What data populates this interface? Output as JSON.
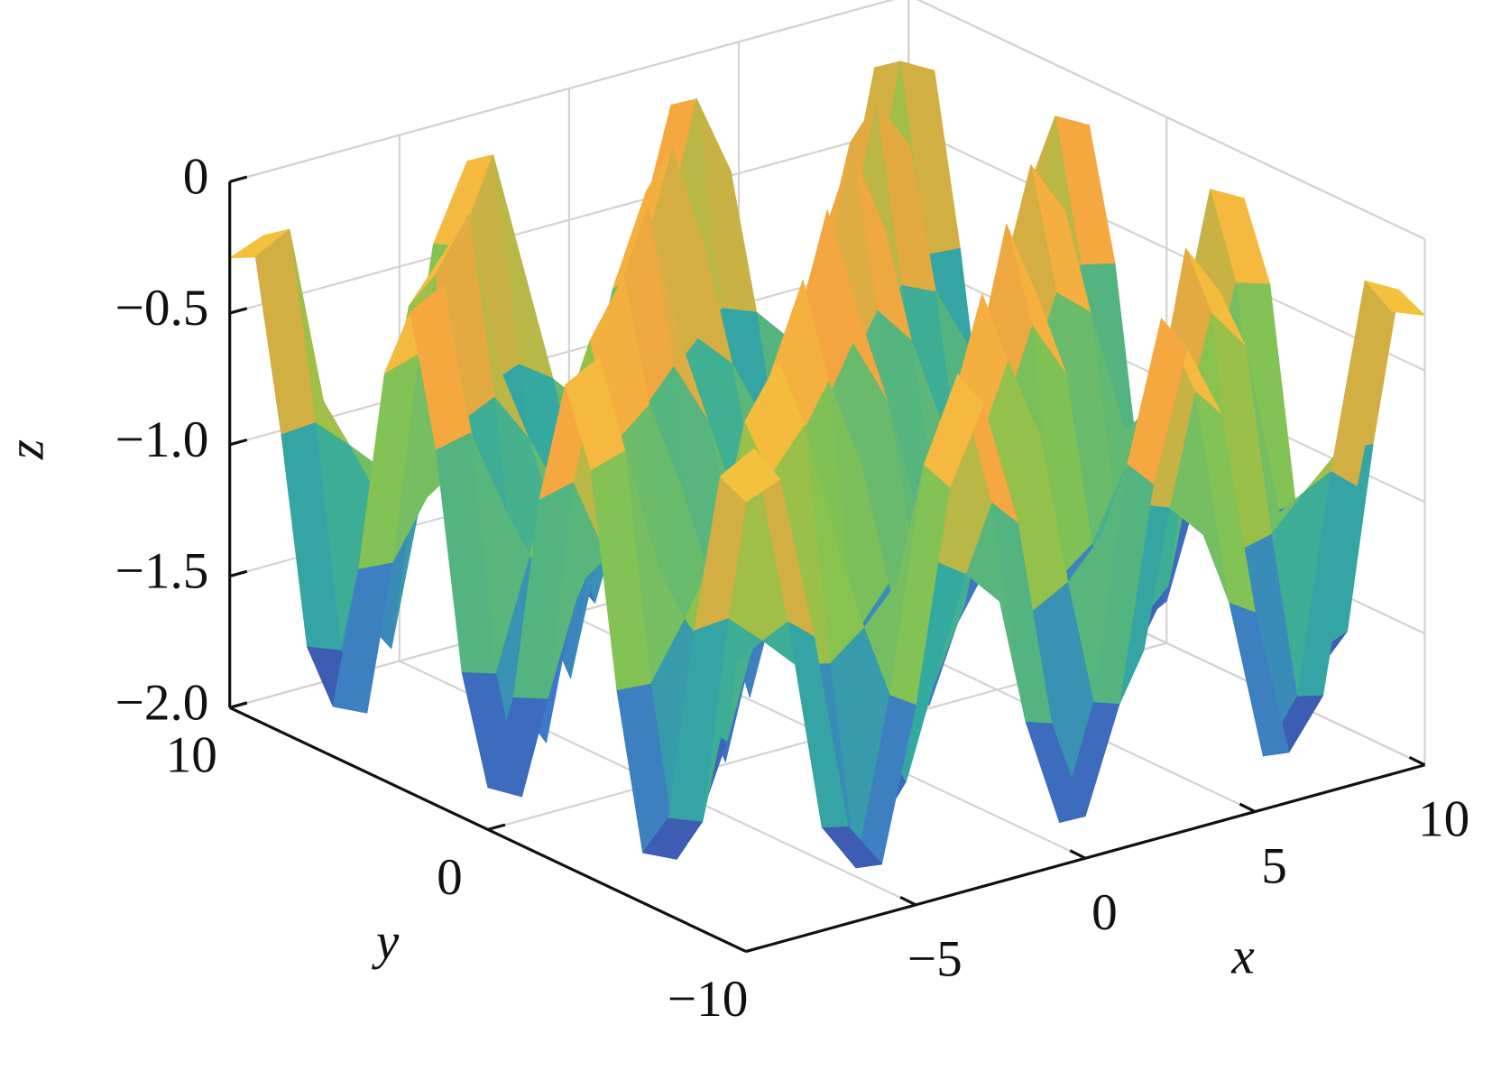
{
  "chart_data": {
    "type": "surface",
    "x_label": "x",
    "y_label": "y",
    "z_label": "z",
    "xlim": [
      -10,
      10
    ],
    "ylim": [
      -10,
      10
    ],
    "zlim": [
      -2,
      0
    ],
    "xticks": [
      {
        "value": -5,
        "label": "−5"
      },
      0,
      5,
      10
    ],
    "yticks": [
      {
        "value": -10,
        "label": "−10"
      },
      0,
      10
    ],
    "zticks": [
      {
        "value": -2,
        "label": "−2.0"
      },
      {
        "value": -1.5,
        "label": "−1.5"
      },
      {
        "value": -1,
        "label": "−1.0"
      },
      {
        "value": -0.5,
        "label": "−0.5"
      },
      0
    ],
    "grid": true,
    "colormap": [
      "#3e2d8f",
      "#3d79c8",
      "#34ab9e",
      "#8bc44c",
      "#f5a53f",
      "#f2e83a"
    ],
    "x": [
      -10,
      -9,
      -8,
      -7,
      -6,
      -5,
      -4,
      -3,
      -2,
      -1,
      0,
      1,
      2,
      3,
      4,
      5,
      6,
      7,
      8,
      9,
      10
    ],
    "y": [
      -10,
      -9,
      -8,
      -7,
      -6,
      -5,
      -4,
      -3,
      -2,
      -1,
      0,
      1,
      2,
      3,
      4,
      5,
      6,
      7,
      8,
      9,
      10
    ],
    "z": [
      [
        -0.29,
        -0.24,
        -0.87,
        -1.63,
        -1.81,
        -1.24,
        -0.45,
        -0.17,
        -0.65,
        -1.45,
        -1.84,
        -1.45,
        -0.65,
        -0.17,
        -0.45,
        -1.24,
        -1.81,
        -1.63,
        -0.87,
        -0.24,
        -0.29
      ],
      [
        -0.24,
        -0.17,
        -0.86,
        -1.68,
        -1.87,
        -1.25,
        -0.41,
        -0.1,
        -0.62,
        -1.49,
        -1.91,
        -1.49,
        -0.62,
        -0.1,
        -0.41,
        -1.25,
        -1.87,
        -1.68,
        -0.86,
        -0.17,
        -0.24
      ],
      [
        -0.87,
        -0.86,
        -0.98,
        -1.11,
        -1.14,
        -1.04,
        -0.9,
        -0.85,
        -0.94,
        -1.08,
        -1.15,
        -1.08,
        -0.94,
        -0.85,
        -0.9,
        -1.04,
        -1.14,
        -1.11,
        -0.98,
        -0.86,
        -0.87
      ],
      [
        -1.63,
        -1.68,
        -1.11,
        -0.44,
        -0.28,
        -0.79,
        -1.49,
        -1.74,
        -1.32,
        -0.59,
        -0.25,
        -0.59,
        -1.32,
        -1.74,
        -1.49,
        -0.79,
        -0.28,
        -0.44,
        -1.11,
        -1.68,
        -1.63
      ],
      [
        -1.81,
        -1.87,
        -1.14,
        -0.28,
        -0.08,
        -0.73,
        -1.62,
        -1.95,
        -1.4,
        -0.48,
        -0.04,
        -0.48,
        -1.4,
        -1.95,
        -1.62,
        -0.73,
        -0.08,
        -0.28,
        -1.14,
        -1.87,
        -1.81
      ],
      [
        -1.24,
        -1.25,
        -1.04,
        -0.79,
        -0.73,
        -0.92,
        -1.18,
        -1.28,
        -1.12,
        -0.85,
        -0.72,
        -0.85,
        -1.12,
        -1.28,
        -1.18,
        -0.92,
        -0.73,
        -0.79,
        -1.04,
        -1.25,
        -1.24
      ],
      [
        -0.45,
        -0.41,
        -0.9,
        -1.49,
        -1.62,
        -1.18,
        -0.58,
        -0.36,
        -0.73,
        -1.35,
        -1.65,
        -1.35,
        -0.73,
        -0.36,
        -0.58,
        -1.18,
        -1.62,
        -1.49,
        -0.9,
        -0.41,
        -0.45
      ],
      [
        -0.17,
        -0.1,
        -0.85,
        -1.74,
        -1.95,
        -1.28,
        -0.36,
        -0.02,
        -0.58,
        -1.53,
        -1.99,
        -1.53,
        -0.58,
        -0.02,
        -0.36,
        -1.28,
        -1.95,
        -1.74,
        -0.85,
        -0.1,
        -0.17
      ],
      [
        -0.65,
        -0.62,
        -0.94,
        -1.32,
        -1.4,
        -1.12,
        -0.73,
        -0.58,
        -0.82,
        -1.23,
        -1.42,
        -1.23,
        -0.82,
        -0.58,
        -0.73,
        -1.12,
        -1.4,
        -1.32,
        -0.94,
        -0.62,
        -0.65
      ],
      [
        -1.45,
        -1.49,
        -1.08,
        -0.59,
        -0.48,
        -0.85,
        -1.35,
        -1.53,
        -1.23,
        -0.71,
        -0.46,
        -0.71,
        -1.23,
        -1.53,
        -1.35,
        -0.85,
        -0.48,
        -0.59,
        -1.08,
        -1.49,
        -1.45
      ],
      [
        -1.84,
        -1.91,
        -1.15,
        -0.25,
        -0.04,
        -0.72,
        -1.65,
        -1.99,
        -1.42,
        -0.46,
        0,
        -0.46,
        -1.42,
        -1.99,
        -1.65,
        -0.72,
        -0.04,
        -0.25,
        -1.15,
        -1.91,
        -1.84
      ],
      [
        -1.45,
        -1.49,
        -1.08,
        -0.59,
        -0.48,
        -0.85,
        -1.35,
        -1.53,
        -1.23,
        -0.71,
        -0.46,
        -0.71,
        -1.23,
        -1.53,
        -1.35,
        -0.85,
        -0.48,
        -0.59,
        -1.08,
        -1.49,
        -1.45
      ],
      [
        -0.65,
        -0.62,
        -0.94,
        -1.32,
        -1.4,
        -1.12,
        -0.73,
        -0.58,
        -0.82,
        -1.23,
        -1.42,
        -1.23,
        -0.82,
        -0.58,
        -0.73,
        -1.12,
        -1.4,
        -1.32,
        -0.94,
        -0.62,
        -0.65
      ],
      [
        -0.17,
        -0.1,
        -0.85,
        -1.74,
        -1.95,
        -1.28,
        -0.36,
        -0.02,
        -0.58,
        -1.53,
        -1.99,
        -1.53,
        -0.58,
        -0.02,
        -0.36,
        -1.28,
        -1.95,
        -1.74,
        -0.85,
        -0.1,
        -0.17
      ],
      [
        -0.45,
        -0.41,
        -0.9,
        -1.49,
        -1.62,
        -1.18,
        -0.58,
        -0.36,
        -0.73,
        -1.35,
        -1.65,
        -1.35,
        -0.73,
        -0.36,
        -0.58,
        -1.18,
        -1.62,
        -1.49,
        -0.9,
        -0.41,
        -0.45
      ],
      [
        -1.24,
        -1.25,
        -1.04,
        -0.79,
        -0.73,
        -0.92,
        -1.18,
        -1.28,
        -1.12,
        -0.85,
        -0.72,
        -0.85,
        -1.12,
        -1.28,
        -1.18,
        -0.92,
        -0.73,
        -0.79,
        -1.04,
        -1.25,
        -1.24
      ],
      [
        -1.81,
        -1.87,
        -1.14,
        -0.28,
        -0.08,
        -0.73,
        -1.62,
        -1.95,
        -1.4,
        -0.48,
        -0.04,
        -0.48,
        -1.4,
        -1.95,
        -1.62,
        -0.73,
        -0.08,
        -0.28,
        -1.14,
        -1.87,
        -1.81
      ],
      [
        -1.63,
        -1.68,
        -1.11,
        -0.44,
        -0.28,
        -0.79,
        -1.49,
        -1.74,
        -1.32,
        -0.59,
        -0.25,
        -0.59,
        -1.32,
        -1.74,
        -1.49,
        -0.79,
        -0.28,
        -0.44,
        -1.11,
        -1.68,
        -1.63
      ],
      [
        -0.87,
        -0.86,
        -0.98,
        -1.11,
        -1.14,
        -1.04,
        -0.9,
        -0.85,
        -0.94,
        -1.08,
        -1.15,
        -1.08,
        -0.94,
        -0.85,
        -0.9,
        -1.04,
        -1.14,
        -1.11,
        -0.98,
        -0.86,
        -0.87
      ],
      [
        -0.24,
        -0.17,
        -0.86,
        -1.68,
        -1.87,
        -1.25,
        -0.41,
        -0.1,
        -0.62,
        -1.49,
        -1.91,
        -1.49,
        -0.62,
        -0.1,
        -0.41,
        -1.25,
        -1.87,
        -1.68,
        -0.86,
        -0.17,
        -0.24
      ],
      [
        -0.29,
        -0.24,
        -0.87,
        -1.63,
        -1.81,
        -1.24,
        -0.45,
        -0.17,
        -0.65,
        -1.45,
        -1.84,
        -1.45,
        -0.65,
        -0.17,
        -0.45,
        -1.24,
        -1.81,
        -1.63,
        -0.87,
        -0.24,
        -0.29
      ]
    ]
  }
}
